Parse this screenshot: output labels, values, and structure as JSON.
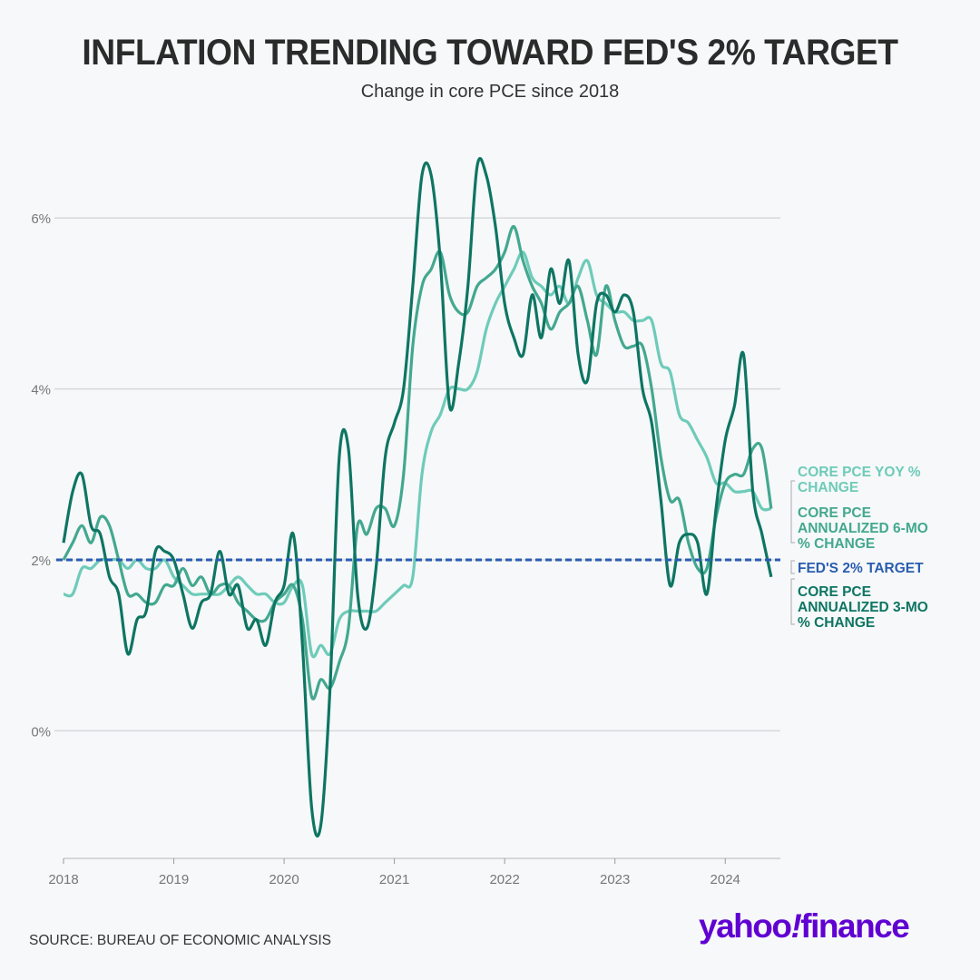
{
  "chart_data": {
    "type": "line",
    "title": "INFLATION TRENDING TOWARD FED'S 2% TARGET",
    "subtitle": "Change in core PCE since 2018",
    "x_start": "2018-01",
    "x_step": "month",
    "xlim": [
      2018,
      2024.5
    ],
    "ylim": [
      -1.5,
      7.0
    ],
    "x_ticks": [
      "2018",
      "2019",
      "2020",
      "2021",
      "2022",
      "2023",
      "2024"
    ],
    "y_ticks": [
      {
        "value": 0,
        "label": "0%"
      },
      {
        "value": 2,
        "label": "2%"
      },
      {
        "value": 4,
        "label": "4%"
      },
      {
        "value": 6,
        "label": "6%"
      }
    ],
    "grid": true,
    "legend_placement": "right",
    "series": [
      {
        "name": "CORE PCE YOY % CHANGE",
        "color": "#6ecbb9",
        "values": [
          1.6,
          1.6,
          1.9,
          1.9,
          2.0,
          2.0,
          2.0,
          1.9,
          2.0,
          1.9,
          1.9,
          2.0,
          1.8,
          1.7,
          1.6,
          1.6,
          1.6,
          1.6,
          1.7,
          1.8,
          1.7,
          1.6,
          1.6,
          1.5,
          1.5,
          1.7,
          1.7,
          0.9,
          1.0,
          0.9,
          1.3,
          1.4,
          1.4,
          1.4,
          1.4,
          1.5,
          1.6,
          1.7,
          1.8,
          3.0,
          3.5,
          3.7,
          4.0,
          4.0,
          4.0,
          4.2,
          4.7,
          5.0,
          5.2,
          5.4,
          5.6,
          5.3,
          5.2,
          5.1,
          5.2,
          5.0,
          5.3,
          5.5,
          5.1,
          5.0,
          4.9,
          4.9,
          4.8,
          4.8,
          4.8,
          4.3,
          4.2,
          3.7,
          3.6,
          3.4,
          3.2,
          2.9,
          2.9,
          2.8,
          2.8,
          2.8,
          2.6,
          2.6
        ]
      },
      {
        "name": "CORE PCE ANNUALIZED 6-MO % CHANGE",
        "color": "#43a88f",
        "values": [
          2.0,
          2.2,
          2.4,
          2.2,
          2.5,
          2.4,
          2.0,
          1.6,
          1.6,
          1.5,
          1.5,
          1.7,
          1.7,
          1.9,
          1.7,
          1.8,
          1.6,
          1.7,
          1.7,
          1.5,
          1.4,
          1.3,
          1.3,
          1.5,
          1.6,
          1.7,
          1.3,
          0.4,
          0.6,
          0.5,
          0.8,
          1.2,
          2.4,
          2.3,
          2.6,
          2.6,
          2.4,
          3.0,
          4.5,
          5.2,
          5.4,
          5.6,
          5.1,
          4.9,
          4.9,
          5.2,
          5.3,
          5.4,
          5.6,
          5.9,
          5.5,
          5.2,
          5.0,
          4.7,
          4.9,
          5.0,
          5.2,
          4.8,
          4.4,
          5.2,
          4.8,
          4.5,
          4.5,
          4.5,
          4.0,
          3.2,
          2.7,
          2.7,
          2.2,
          1.9,
          1.9,
          2.5,
          2.9,
          3.0,
          3.0,
          3.3,
          3.3,
          2.6
        ]
      },
      {
        "name": "CORE PCE ANNUALIZED 3-MO % CHANGE",
        "color": "#0e7563",
        "values": [
          2.2,
          2.8,
          3.0,
          2.4,
          2.3,
          1.8,
          1.6,
          0.9,
          1.3,
          1.4,
          2.1,
          2.1,
          2.0,
          1.6,
          1.2,
          1.5,
          1.6,
          2.1,
          1.6,
          1.7,
          1.2,
          1.3,
          1.0,
          1.5,
          1.7,
          2.3,
          1.0,
          -0.9,
          -1.1,
          0.5,
          3.2,
          3.3,
          1.6,
          1.2,
          1.9,
          3.2,
          3.6,
          4.0,
          5.2,
          6.5,
          6.5,
          5.5,
          3.8,
          4.3,
          5.2,
          6.6,
          6.5,
          5.9,
          5.0,
          4.6,
          4.4,
          5.1,
          4.6,
          5.4,
          5.0,
          5.5,
          4.4,
          4.1,
          5.0,
          5.1,
          4.9,
          5.1,
          4.9,
          4.0,
          3.6,
          2.7,
          1.7,
          2.2,
          2.3,
          2.2,
          1.6,
          2.6,
          3.4,
          3.8,
          4.4,
          2.8,
          2.3,
          1.8
        ]
      }
    ],
    "reference_line": {
      "name": "FED'S 2% TARGET",
      "value": 2,
      "color": "#2a5db0",
      "style": "dashed"
    }
  },
  "source": "SOURCE: BUREAU OF ECONOMIC ANALYSIS",
  "logo": "yahoo!finance"
}
